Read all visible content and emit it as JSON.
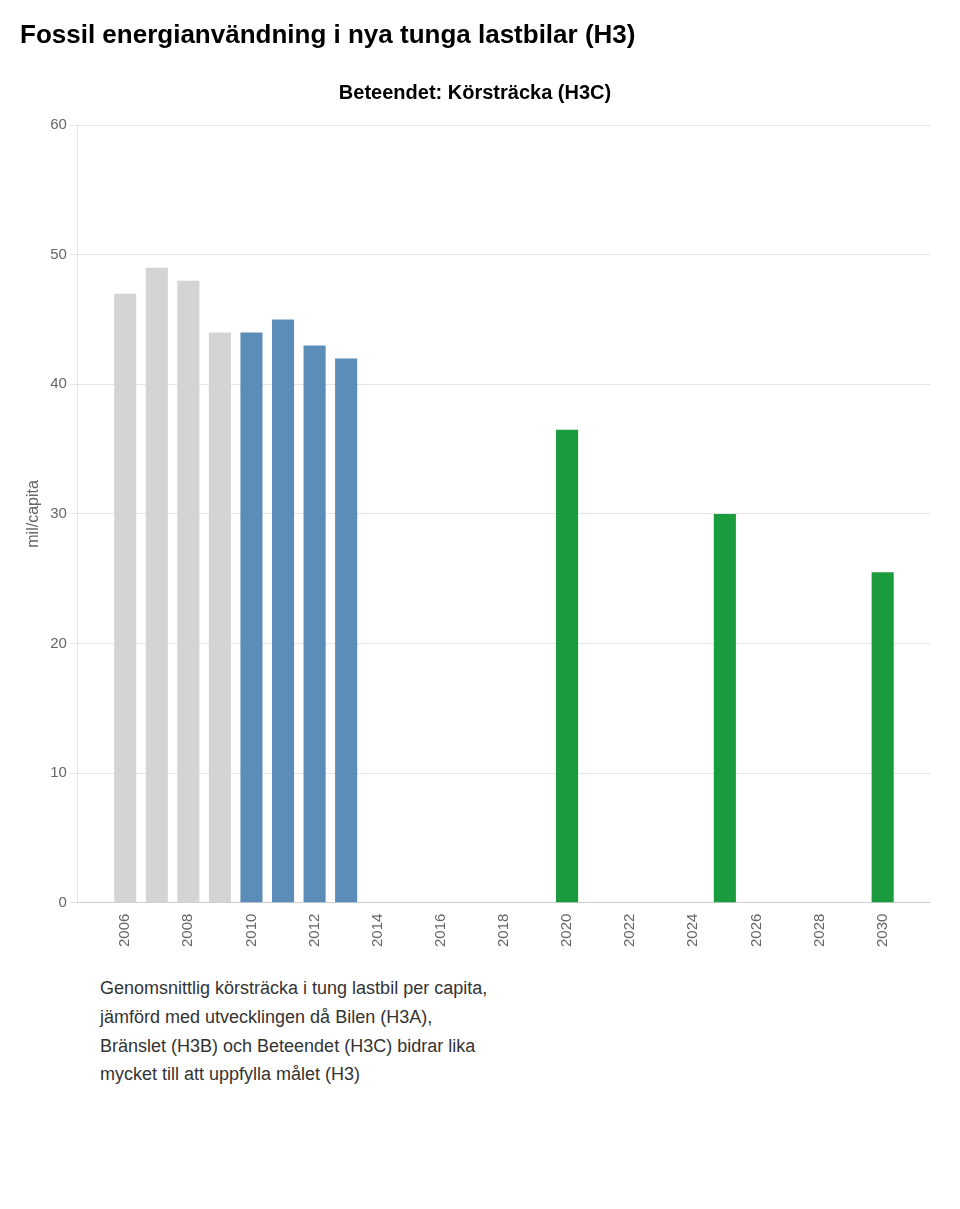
{
  "chart_data": {
    "type": "bar",
    "title": "Fossil energianvändning i nya tunga lastbilar (H3)",
    "subtitle": "Beteendet: Körsträcka (H3C)",
    "ylabel": "mil/capita",
    "x": [
      2006,
      2007,
      2008,
      2009,
      2010,
      2011,
      2012,
      2013,
      2020,
      2025,
      2030
    ],
    "values": [
      47,
      49,
      48,
      44,
      44,
      45,
      43,
      42,
      36.5,
      30,
      25.5
    ],
    "colors": [
      "#d4d4d4",
      "#d4d4d4",
      "#d4d4d4",
      "#d4d4d4",
      "#5b8db8",
      "#5b8db8",
      "#5b8db8",
      "#5b8db8",
      "#1a9c3e",
      "#1a9c3e",
      "#1a9c3e"
    ],
    "xlim": [
      2004.5,
      2031.5
    ],
    "xticks": [
      2006,
      2008,
      2010,
      2012,
      2014,
      2016,
      2018,
      2020,
      2022,
      2024,
      2026,
      2028,
      2030
    ],
    "ylim": [
      0,
      60
    ],
    "yticks": [
      0,
      10,
      20,
      30,
      40,
      50,
      60
    ],
    "grid": true,
    "annotations": [
      "Genomsnittlig körsträcka i tung lastbil per capita,",
      "jämförd med utvecklingen då Bilen (H3A),",
      "Bränslet (H3B) och Beteendet (H3C) bidrar lika",
      "mycket till att uppfylla målet (H3)"
    ]
  }
}
